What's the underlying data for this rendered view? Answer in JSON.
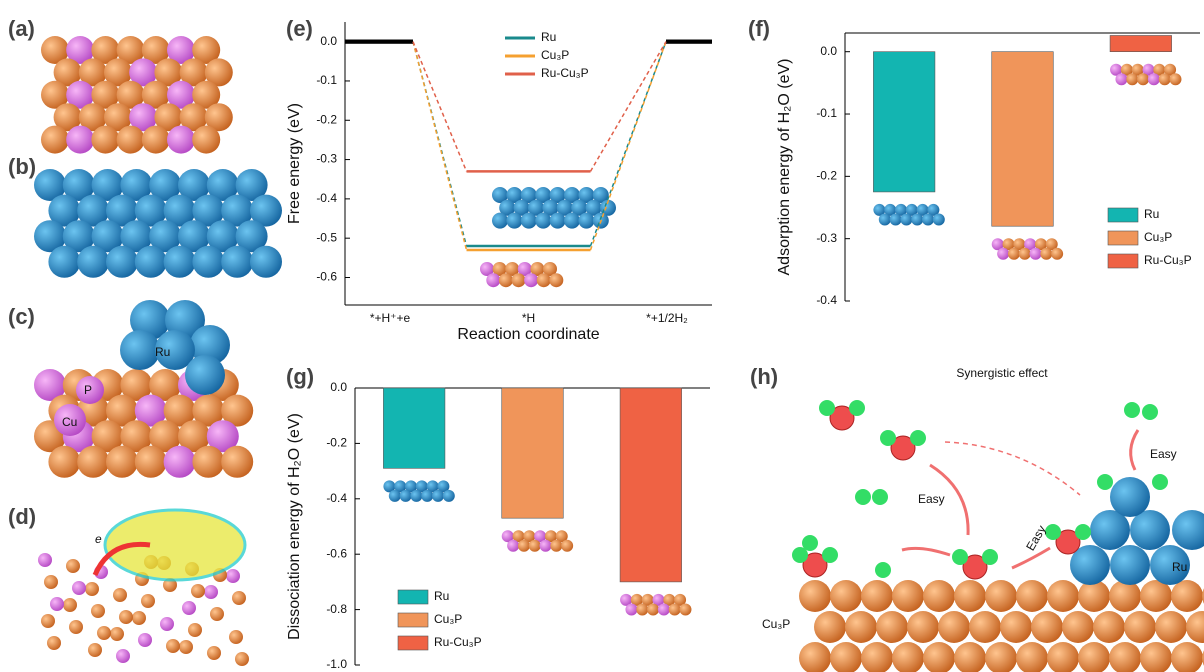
{
  "panel_labels": [
    "(a)",
    "(b)",
    "(c)",
    "(d)",
    "(e)",
    "(f)",
    "(g)",
    "(h)"
  ],
  "structure_c": {
    "ru": "Ru",
    "p": "P",
    "cu": "Cu"
  },
  "structure_d": {
    "electron": "e"
  },
  "chart_data": [
    {
      "type": "energy",
      "categories": [
        "*+H⁺+e",
        "*H",
        "*+1/2H₂"
      ],
      "xlabel": "Reaction coordinate",
      "ylabel": "Free energy (eV)",
      "ylim": [
        -0.67,
        0.05
      ],
      "yticks": [
        {
          "value": 0,
          "label": "0.0"
        },
        -0.1,
        -0.2,
        -0.3,
        -0.4,
        -0.5,
        -0.6
      ],
      "endpoint_color": "#000000",
      "series": [
        {
          "name": "Ru",
          "color": "#1a8a8c",
          "values": [
            0,
            -0.52,
            0
          ]
        },
        {
          "name": "Cu₃P",
          "color": "#f5a030",
          "values": [
            0,
            -0.53,
            0
          ]
        },
        {
          "name": "Ru-Cu₃P",
          "color": "#e0604a",
          "values": [
            0,
            -0.33,
            0
          ]
        }
      ]
    },
    {
      "type": "bar",
      "categories": [
        "Ru",
        "Cu₃P",
        "Ru-Cu₃P"
      ],
      "colors": [
        "#13b5b1",
        "#f0955a",
        "#ef6244"
      ],
      "values": [
        -0.225,
        -0.28,
        0.026
      ],
      "ylabel": "Adsorption energy of H₂O (eV)",
      "ylim": [
        -0.4,
        0.03
      ],
      "yticks": [
        {
          "value": 0,
          "label": "0.0"
        },
        -0.1,
        -0.2,
        -0.3,
        -0.4
      ]
    },
    {
      "type": "bar",
      "categories": [
        "Ru",
        "Cu₃P",
        "Ru-Cu₃P"
      ],
      "colors": [
        "#13b5b1",
        "#f0955a",
        "#ef6244"
      ],
      "values": [
        -0.29,
        -0.47,
        -0.7
      ],
      "ylabel": "Dissociation energy of H₂O (eV)",
      "ylim": [
        -1,
        0
      ],
      "yticks": [
        {
          "value": 0,
          "label": "0.0"
        },
        -0.2,
        -0.4,
        -0.6,
        -0.8,
        {
          "value": -1,
          "label": "-1.0"
        }
      ]
    }
  ],
  "diagram_h": {
    "title": "Synergistic effect",
    "arrows": [
      "Easy",
      "Easy",
      "Easy"
    ],
    "ru": "Ru",
    "substrate": "Cu₃P"
  }
}
